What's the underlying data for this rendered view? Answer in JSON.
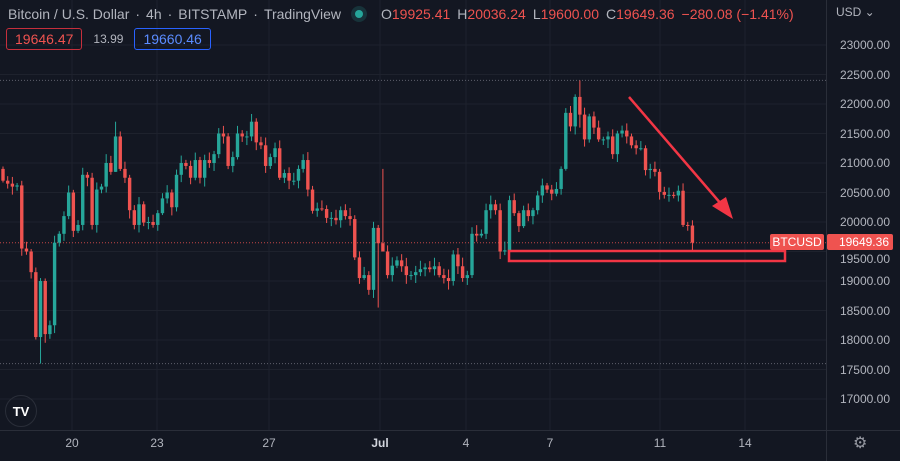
{
  "header": {
    "symbol": "Bitcoin / U.S. Dollar",
    "interval": "4h",
    "exchange": "BITSTAMP",
    "source": "TradingView",
    "sep": "·",
    "open_label": "O",
    "open": "19925.41",
    "high_label": "H",
    "high": "20036.24",
    "low_label": "L",
    "low": "19600.00",
    "close_label": "C",
    "close": "19649.36",
    "change": "−280.08 (−1.41%)",
    "bid": "19646.47",
    "spread": "13.99",
    "ask": "19660.46"
  },
  "price_axis": {
    "currency": "USD ⌄",
    "labels": [
      "23000.00",
      "22500.00",
      "22000.00",
      "21500.00",
      "21000.00",
      "20500.00",
      "20000.00",
      "19500.00",
      "19000.00",
      "18500.00",
      "18000.00",
      "17500.00",
      "17000.00"
    ]
  },
  "last_price_tag": {
    "symbol": "BTCUSD",
    "price": "19649.36"
  },
  "time_axis": {
    "labels": [
      "20",
      "23",
      "27",
      "Jul",
      "4",
      "7",
      "11",
      "14"
    ]
  },
  "logo_text": "TV",
  "colors": {
    "background": "#131722",
    "up": "#26a69a",
    "down": "#ef5350",
    "drawing": "#f23645"
  },
  "chart_data": {
    "type": "candlestick",
    "title": "Bitcoin / U.S. Dollar · 4h · BITSTAMP",
    "ylabel": "USD",
    "ylim": [
      16700,
      23400
    ],
    "grid": true,
    "first_open": 20900,
    "close": [
      20700,
      20650,
      20600,
      20620,
      19550,
      19500,
      19150,
      18050,
      19000,
      18100,
      18250,
      19650,
      19800,
      20100,
      20500,
      19850,
      19950,
      20800,
      20750,
      19950,
      20550,
      20600,
      21000,
      20850,
      21450,
      20900,
      20750,
      20200,
      19950,
      20300,
      19990,
      20000,
      19950,
      20150,
      20400,
      20500,
      20250,
      20800,
      21000,
      20950,
      20750,
      21050,
      20750,
      21050,
      21000,
      21150,
      21500,
      21450,
      20950,
      21100,
      21500,
      21450,
      21450,
      21700,
      21350,
      21300,
      20950,
      21100,
      21250,
      20750,
      20830,
      20700,
      20700,
      20900,
      21050,
      20550,
      20190,
      20230,
      20220,
      20070,
      20070,
      20030,
      20200,
      20100,
      20050,
      19400,
      19050,
      19100,
      18850,
      19900,
      19640,
      19500,
      19100,
      19260,
      19350,
      19250,
      19100,
      19100,
      19150,
      19200,
      19230,
      19200,
      19250,
      19100,
      19050,
      19000,
      19450,
      19250,
      19050,
      19100,
      19800,
      19770,
      19800,
      20200,
      20300,
      20200,
      19500,
      19520,
      20370,
      20150,
      19930,
      20200,
      20100,
      20200,
      20450,
      20620,
      20550,
      20480,
      20560,
      20900,
      21850,
      21620,
      22120,
      21820,
      21400,
      21790,
      21600,
      21400,
      21400,
      21450,
      21150,
      21500,
      21550,
      21450,
      21300,
      21250,
      21250,
      20880,
      20900,
      20850,
      20510,
      20460,
      20460,
      20450,
      20530,
      19950,
      19940,
      19650
    ],
    "wick_overrides": {
      "8": [
        19050,
        17600
      ],
      "80": [
        19950,
        18550
      ],
      "81": [
        20900,
        19600
      ],
      "123": [
        22400,
        21600
      ],
      "22": [
        21150,
        20500
      ],
      "24": [
        21700,
        20850
      ]
    },
    "reference_lines": {
      "period_high": 22400,
      "period_low": 17600,
      "last_price": 19649.36
    },
    "drawings": {
      "support_zone": [
        19330,
        19500
      ],
      "arrow": "downtrend"
    }
  }
}
